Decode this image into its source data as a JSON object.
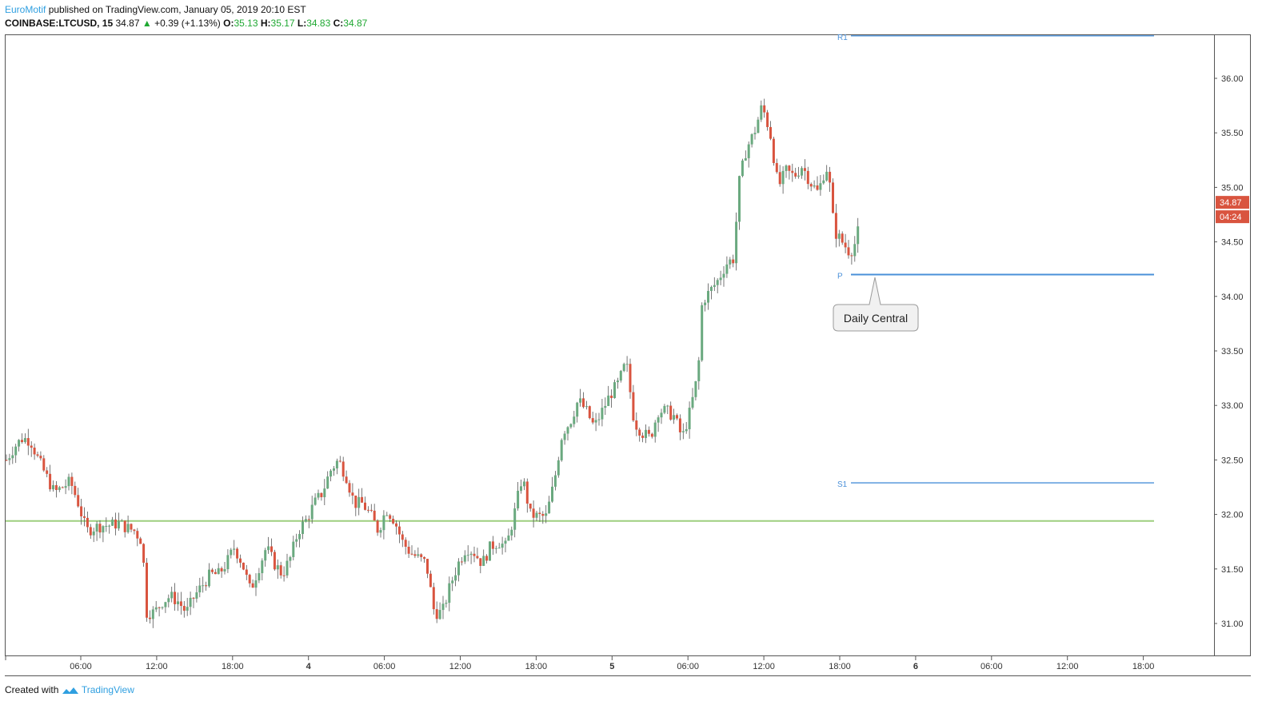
{
  "header": {
    "author": "EuroMotif",
    "published_text": "published on TradingView.com, January 05, 2019 20:10 EST",
    "symbol": "COINBASE:LTCUSD, 15",
    "last": "34.87",
    "change_arrow": "▲",
    "change": "+0.39 (+1.13%)",
    "o_label": "O:",
    "o_value": "35.13",
    "h_label": "H:",
    "h_value": "35.17",
    "l_label": "L:",
    "l_value": "34.83",
    "c_label": "C:",
    "c_value": "34.87"
  },
  "footer": {
    "created_with": "Created with",
    "brand": "TradingView"
  },
  "colors": {
    "up": "#6aa97f",
    "down": "#d9543f",
    "pivot": "#4a90d9",
    "support_line": "#9dcf7f",
    "price_tag": "#d9543f"
  },
  "chart_data": {
    "type": "candlestick",
    "ylim": [
      30.75,
      36.5
    ],
    "y_ticks": [
      "31.00",
      "31.50",
      "32.00",
      "32.50",
      "33.00",
      "33.50",
      "34.00",
      "34.50",
      "35.00",
      "35.50",
      "36.00"
    ],
    "x_ticks": [
      "06:00",
      "12:00",
      "18:00",
      "4",
      "06:00",
      "12:00",
      "18:00",
      "5",
      "06:00",
      "12:00",
      "18:00",
      "6",
      "06:00",
      "12:00",
      "18:00"
    ],
    "x_ticks_bold": [
      "4",
      "5",
      "6"
    ],
    "last_price_tag": "34.87",
    "countdown_tag": "04:24",
    "pivot_levels": [
      {
        "label": "R1",
        "value": 36.39
      },
      {
        "label": "P",
        "value": 34.2
      },
      {
        "label": "S1",
        "value": 32.29
      }
    ],
    "horizontal_line": 31.94,
    "annotation": "Daily Central",
    "ohlc_close_path": [
      [
        0,
        32.5
      ],
      [
        10,
        32.62
      ],
      [
        20,
        32.7
      ],
      [
        30,
        32.68
      ],
      [
        40,
        32.5
      ],
      [
        50,
        32.35
      ],
      [
        60,
        32.2
      ],
      [
        70,
        32.25
      ],
      [
        80,
        32.3
      ],
      [
        90,
        32.1
      ],
      [
        100,
        31.85
      ],
      [
        110,
        31.88
      ],
      [
        120,
        31.9
      ],
      [
        130,
        31.9
      ],
      [
        140,
        31.92
      ],
      [
        150,
        31.88
      ],
      [
        160,
        31.85
      ],
      [
        170,
        31.75
      ],
      [
        175,
        31.1
      ],
      [
        185,
        31.1
      ],
      [
        195,
        31.2
      ],
      [
        205,
        31.25
      ],
      [
        215,
        31.2
      ],
      [
        225,
        31.1
      ],
      [
        235,
        31.25
      ],
      [
        245,
        31.35
      ],
      [
        255,
        31.45
      ],
      [
        265,
        31.45
      ],
      [
        275,
        31.55
      ],
      [
        285,
        31.7
      ],
      [
        295,
        31.55
      ],
      [
        305,
        31.3
      ],
      [
        315,
        31.5
      ],
      [
        325,
        31.7
      ],
      [
        335,
        31.55
      ],
      [
        345,
        31.45
      ],
      [
        355,
        31.6
      ],
      [
        365,
        31.85
      ],
      [
        375,
        31.95
      ],
      [
        385,
        32.1
      ],
      [
        395,
        32.2
      ],
      [
        405,
        32.4
      ],
      [
        415,
        32.5
      ],
      [
        425,
        32.35
      ],
      [
        435,
        32.1
      ],
      [
        445,
        32.1
      ],
      [
        455,
        32.0
      ],
      [
        465,
        31.85
      ],
      [
        475,
        32.05
      ],
      [
        485,
        31.95
      ],
      [
        495,
        31.75
      ],
      [
        505,
        31.65
      ],
      [
        515,
        31.6
      ],
      [
        525,
        31.55
      ],
      [
        535,
        31.1
      ],
      [
        545,
        31.1
      ],
      [
        555,
        31.35
      ],
      [
        565,
        31.55
      ],
      [
        575,
        31.7
      ],
      [
        585,
        31.65
      ],
      [
        595,
        31.55
      ],
      [
        605,
        31.7
      ],
      [
        615,
        31.75
      ],
      [
        625,
        31.7
      ],
      [
        635,
        32.0
      ],
      [
        645,
        32.35
      ],
      [
        655,
        32.0
      ],
      [
        665,
        31.98
      ],
      [
        675,
        31.98
      ],
      [
        685,
        32.3
      ],
      [
        695,
        32.75
      ],
      [
        705,
        32.85
      ],
      [
        715,
        33.05
      ],
      [
        725,
        32.95
      ],
      [
        735,
        32.8
      ],
      [
        745,
        32.95
      ],
      [
        755,
        33.1
      ],
      [
        765,
        33.2
      ],
      [
        775,
        33.4
      ],
      [
        785,
        32.85
      ],
      [
        795,
        32.75
      ],
      [
        805,
        32.7
      ],
      [
        815,
        32.95
      ],
      [
        825,
        32.95
      ],
      [
        835,
        32.9
      ],
      [
        845,
        32.7
      ],
      [
        855,
        32.95
      ],
      [
        865,
        33.3
      ],
      [
        870,
        33.95
      ],
      [
        880,
        34.05
      ],
      [
        890,
        34.15
      ],
      [
        900,
        34.3
      ],
      [
        910,
        34.35
      ],
      [
        915,
        35.0
      ],
      [
        925,
        35.35
      ],
      [
        935,
        35.5
      ],
      [
        945,
        35.75
      ],
      [
        955,
        35.5
      ],
      [
        965,
        35.0
      ],
      [
        975,
        35.15
      ],
      [
        985,
        35.1
      ],
      [
        995,
        35.2
      ],
      [
        1005,
        35.05
      ],
      [
        1015,
        34.95
      ],
      [
        1025,
        35.2
      ],
      [
        1030,
        35.0
      ],
      [
        1035,
        34.6
      ],
      [
        1045,
        34.5
      ],
      [
        1055,
        34.4
      ],
      [
        1062,
        34.5
      ],
      [
        1068,
        34.7
      ],
      [
        1075,
        34.87
      ]
    ]
  }
}
